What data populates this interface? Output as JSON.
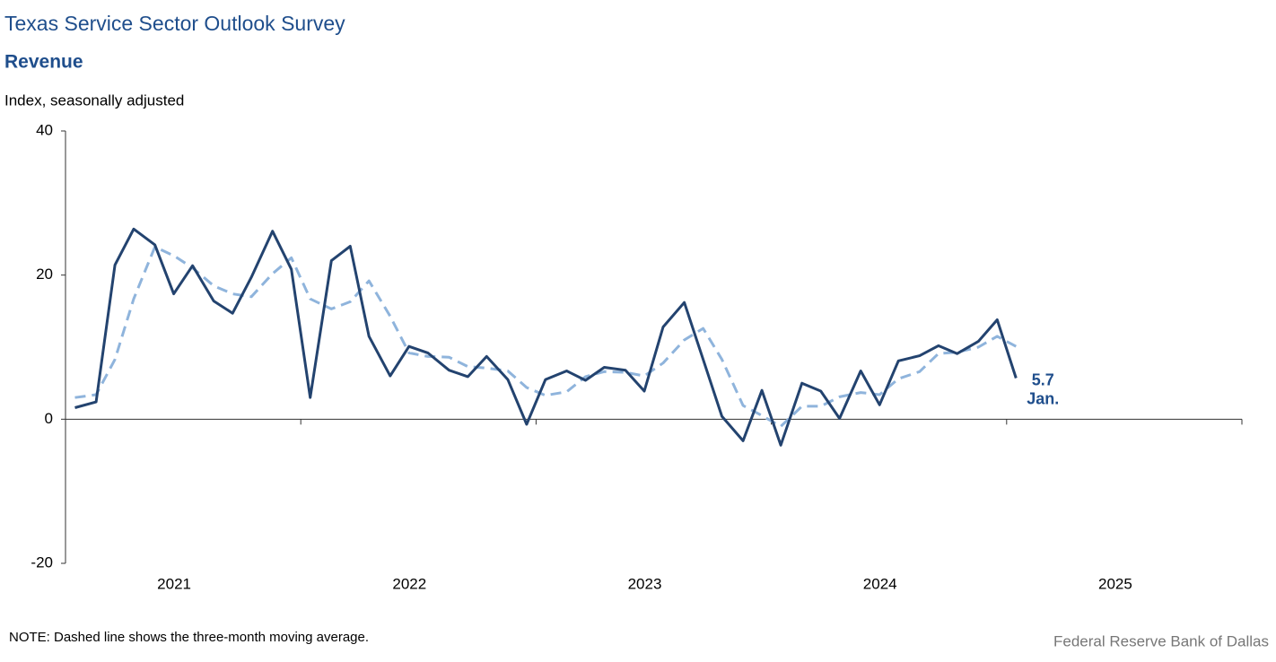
{
  "chart_data": {
    "type": "line",
    "title": "Texas Service Sector Outlook Survey",
    "subtitle": "Revenue",
    "y_label": "Index, seasonally adjusted",
    "note": "NOTE: Dashed line shows the three-month  moving average.",
    "source": "Federal Reserve Bank of Dallas",
    "annotation": "Jan.",
    "x": [
      2021.04,
      2021.13,
      2021.21,
      2021.29,
      2021.38,
      2021.46,
      2021.54,
      2021.63,
      2021.71,
      2021.79,
      2021.88,
      2021.96,
      2022.04,
      2022.13,
      2022.21,
      2022.29,
      2022.38,
      2022.46,
      2022.54,
      2022.63,
      2022.71,
      2022.79,
      2022.88,
      2022.96,
      2023.04,
      2023.13,
      2023.21,
      2023.29,
      2023.38,
      2023.46,
      2023.54,
      2023.63,
      2023.71,
      2023.79,
      2023.88,
      2023.96,
      2024.04,
      2024.13,
      2024.21,
      2024.29,
      2024.38,
      2024.46,
      2024.54,
      2024.63,
      2024.71,
      2024.79,
      2024.88,
      2024.96,
      2025.04
    ],
    "series": [
      {
        "name": "Revenue",
        "color": "#23436f",
        "dashed": false,
        "values": [
          1.6,
          2.4,
          21.4,
          26.4,
          24.2,
          17.4,
          21.3,
          16.4,
          14.7,
          19.7,
          26.1,
          20.8,
          3.0,
          22.0,
          24.0,
          11.5,
          6.0,
          10.1,
          9.2,
          6.8,
          5.9,
          8.7,
          5.5,
          -0.7,
          5.5,
          6.7,
          5.4,
          7.2,
          6.8,
          3.9,
          12.8,
          16.2,
          8.3,
          0.4,
          -3.0,
          4.0,
          -3.6,
          5.0,
          3.9,
          0.1,
          6.7,
          2.0,
          8.1,
          8.8,
          10.2,
          9.1,
          10.8,
          13.8,
          5.7
        ]
      },
      {
        "name": "Three-month moving average",
        "color": "#8fb4dc",
        "dashed": true,
        "values": [
          3.0,
          3.4,
          8.3,
          16.7,
          23.9,
          22.7,
          21.0,
          18.5,
          17.4,
          17.0,
          20.2,
          22.4,
          16.7,
          15.3,
          16.3,
          19.2,
          14.3,
          9.2,
          8.7,
          8.6,
          7.3,
          7.1,
          6.7,
          4.4,
          3.3,
          3.8,
          5.9,
          6.6,
          6.5,
          6.0,
          7.8,
          11.0,
          12.6,
          8.3,
          1.9,
          0.5,
          -1.0,
          1.8,
          1.8,
          3.1,
          3.7,
          3.4,
          5.6,
          6.6,
          9.1,
          9.3,
          10.0,
          11.5,
          10.1
        ]
      }
    ],
    "xlim": [
      2021,
      2026
    ],
    "xticks": [
      2021,
      2022,
      2023,
      2024,
      2025
    ],
    "ylim": [
      -20,
      40
    ],
    "yticks": [
      -20,
      0,
      20,
      40
    ],
    "grid": false
  }
}
